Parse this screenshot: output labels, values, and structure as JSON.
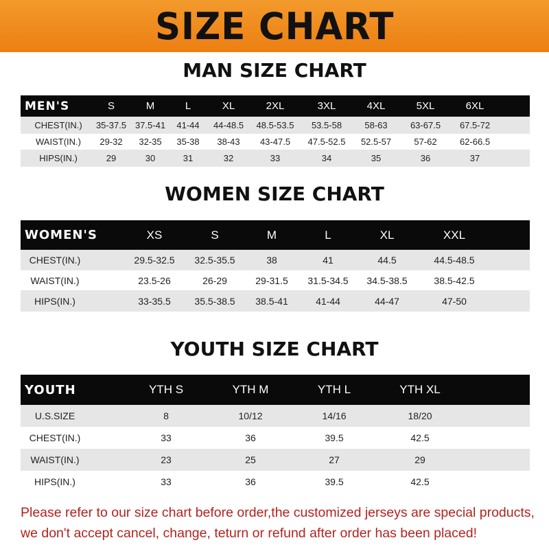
{
  "title": "SIZE CHART",
  "men": {
    "title": "MAN SIZE CHART",
    "header": [
      "MEN'S",
      "S",
      "M",
      "L",
      "XL",
      "2XL",
      "3XL",
      "4XL",
      "5XL",
      "6XL"
    ],
    "rows": [
      [
        "CHEST(IN.)",
        "35-37.5",
        "37.5-41",
        "41-44",
        "44-48.5",
        "48.5-53.5",
        "53.5-58",
        "58-63",
        "63-67.5",
        "67.5-72"
      ],
      [
        "WAIST(IN.)",
        "29-32",
        "32-35",
        "35-38",
        "38-43",
        "43-47.5",
        "47.5-52.5",
        "52.5-57",
        "57-62",
        "62-66.5"
      ],
      [
        "HIPS(IN.)",
        "29",
        "30",
        "31",
        "32",
        "33",
        "34",
        "35",
        "36",
        "37"
      ]
    ]
  },
  "women": {
    "title": "WOMEN SIZE CHART",
    "header": [
      "WOMEN'S",
      "XS",
      "S",
      "M",
      "L",
      "XL",
      "XXL"
    ],
    "rows": [
      [
        "CHEST(IN.)",
        "29.5-32.5",
        "32.5-35.5",
        "38",
        "41",
        "44.5",
        "44.5-48.5"
      ],
      [
        "WAIST(IN.)",
        "23.5-26",
        "26-29",
        "29-31.5",
        "31.5-34.5",
        "34.5-38.5",
        "38.5-42.5"
      ],
      [
        "HIPS(IN.)",
        "33-35.5",
        "35.5-38.5",
        "38.5-41",
        "41-44",
        "44-47",
        "47-50"
      ]
    ]
  },
  "youth": {
    "title": "YOUTH SIZE CHART",
    "header": [
      "YOUTH",
      "YTH S",
      "YTH M",
      "YTH L",
      "YTH XL"
    ],
    "rows": [
      [
        "U.S.SIZE",
        "8",
        "10/12",
        "14/16",
        "18/20"
      ],
      [
        "CHEST(IN.)",
        "33",
        "36",
        "39.5",
        "42.5"
      ],
      [
        "WAIST(IN.)",
        "23",
        "25",
        "27",
        "29"
      ],
      [
        "HIPS(IN.)",
        "33",
        "36",
        "39.5",
        "42.5"
      ]
    ]
  },
  "notice": {
    "line1": "Please refer to our size chart before order,the customized jerseys are special products,",
    "line2": "we don't accept cancel, change, teturn or refund after order has been placed!"
  },
  "colors": {
    "banner": "#ef8a1c",
    "header_row": "#0a0a0a",
    "stripe": "#e6e6e6",
    "notice": "#b3231f"
  }
}
